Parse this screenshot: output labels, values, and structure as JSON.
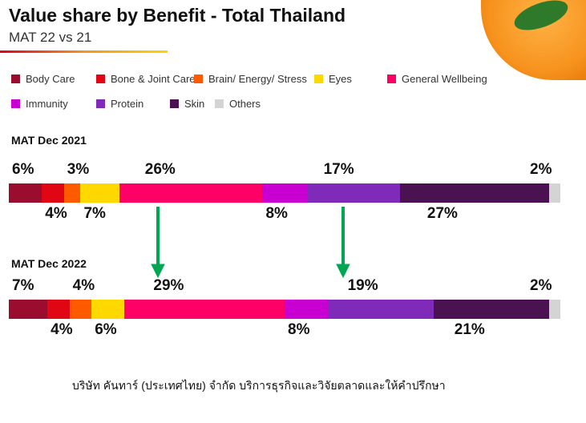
{
  "chart_data": {
    "type": "bar",
    "stacked": true,
    "orientation": "horizontal",
    "title": "Value share by Benefit - Total Thailand",
    "subtitle": "MAT 22 vs 21",
    "categories": [
      "MAT Dec 2021",
      "MAT Dec 2022"
    ],
    "series": [
      {
        "name": "Body Care",
        "color": "#9b0d2e",
        "values": [
          6,
          7
        ]
      },
      {
        "name": "Bone & Joint Care",
        "color": "#e10613",
        "values": [
          4,
          4
        ]
      },
      {
        "name": "Brain/ Energy/ Stress",
        "color": "#ff5a00",
        "values": [
          3,
          4
        ]
      },
      {
        "name": "Eyes",
        "color": "#ffd800",
        "values": [
          7,
          6
        ]
      },
      {
        "name": "General Wellbeing",
        "color": "#ff0066",
        "values": [
          26,
          29
        ]
      },
      {
        "name": "Immunity",
        "color": "#c800d2",
        "values": [
          8,
          8
        ]
      },
      {
        "name": "Protein",
        "color": "#7f2ab8",
        "values": [
          17,
          19
        ]
      },
      {
        "name": "Skin",
        "color": "#4a1250",
        "values": [
          27,
          21
        ]
      },
      {
        "name": "Others",
        "color": "#d4d4d4",
        "values": [
          2,
          2
        ]
      }
    ],
    "unit": "%",
    "legend_position": "top"
  },
  "footer": "บริษัท คันทาร์ (ประเทศไทย) จำกัด   บริการธุรกิจและวิจัยตลาดและให้คำปรึกษา"
}
